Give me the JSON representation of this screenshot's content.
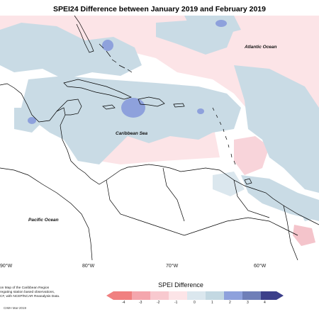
{
  "map": {
    "title": "SPEI24 Difference between January 2019 and February 2019",
    "labels": {
      "atlantic": "Atlantic Ocean",
      "caribbean": "Caribbean Sea",
      "pacific": "Pacific Ocean"
    },
    "longitudes": [
      "90°W",
      "80°W",
      "70°W",
      "60°W"
    ],
    "caption_lines": [
      "on Map of the Caribbean Region",
      "regating station based observations,",
      "CF, with NCEP/NCAR Reanalysis Data."
    ],
    "footer": "CIMH Mar-2019"
  },
  "legend": {
    "title": "SPEI Difference",
    "ticks": [
      "-4",
      "-3",
      "-2",
      "-1",
      "0",
      "1",
      "2",
      "3",
      "4"
    ],
    "colors": [
      "#f08080",
      "#f4a6ad",
      "#f8c9cf",
      "#fce4e7",
      "#dbe7ee",
      "#c3d8e2",
      "#8ea1dc",
      "#6f7fb8",
      "#3c3f8a"
    ]
  }
}
